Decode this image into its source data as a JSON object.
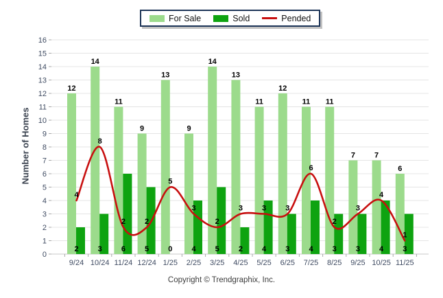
{
  "legend": {
    "items": [
      {
        "label": "For Sale",
        "type": "bar",
        "color": "#9cdb8c"
      },
      {
        "label": "Sold",
        "type": "bar",
        "color": "#0ea310"
      },
      {
        "label": "Pended",
        "type": "line",
        "color": "#c80f0f"
      }
    ]
  },
  "ylabel": "Number of Homes",
  "footer": "Copyright © Trendgraphix, Inc.",
  "colors": {
    "for_sale": "#9cdb8c",
    "sold": "#0ea310",
    "pended": "#c80f0f",
    "grid": "#e4e4e4",
    "axis": "#c8c8c8",
    "tick": "#a8a8a8",
    "tick_label": "#3e4a61",
    "value_label": "#000000"
  },
  "chart_data": {
    "type": "bar",
    "title": "",
    "xlabel": "",
    "ylabel": "Number of Homes",
    "categories": [
      "9/24",
      "10/24",
      "11/24",
      "12/24",
      "1/25",
      "2/25",
      "3/25",
      "4/25",
      "5/25",
      "6/25",
      "7/25",
      "8/25",
      "9/25",
      "10/25",
      "11/25"
    ],
    "series": [
      {
        "name": "For Sale",
        "type": "bar",
        "color": "#9cdb8c",
        "values": [
          12,
          14,
          11,
          9,
          13,
          9,
          14,
          13,
          11,
          12,
          11,
          11,
          7,
          7,
          6
        ]
      },
      {
        "name": "Sold",
        "type": "bar",
        "color": "#0ea310",
        "values": [
          2,
          3,
          6,
          5,
          0,
          4,
          5,
          2,
          4,
          3,
          4,
          3,
          3,
          4,
          3
        ]
      },
      {
        "name": "Pended",
        "type": "line",
        "color": "#c80f0f",
        "values": [
          4,
          8,
          2,
          2,
          5,
          3,
          2,
          3,
          3,
          3,
          6,
          2,
          3,
          4,
          1
        ]
      }
    ],
    "ylim": [
      0,
      16
    ],
    "ytick_step": 1,
    "yticks": [
      0,
      1,
      2,
      3,
      4,
      5,
      6,
      7,
      8,
      9,
      10,
      11,
      12,
      13,
      14,
      15,
      16
    ],
    "grid": true,
    "legend_position": "top-center",
    "value_labels": true
  }
}
